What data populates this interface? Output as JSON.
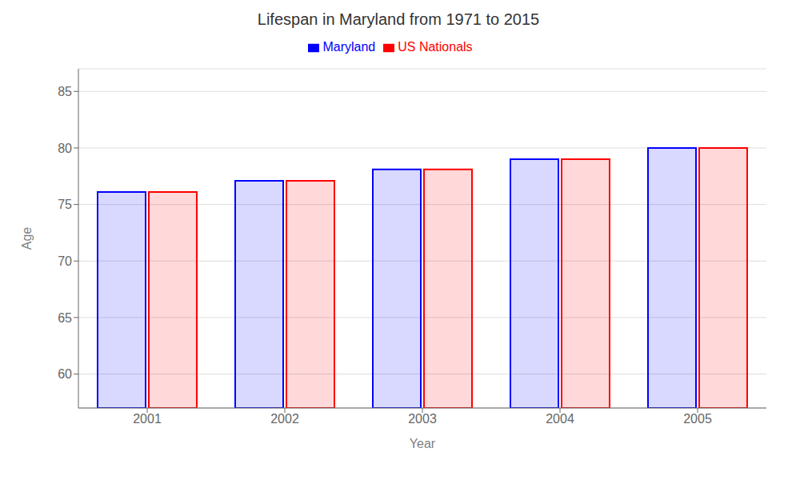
{
  "chart_data": {
    "type": "bar",
    "title": "Lifespan in Maryland from 1971 to 2015",
    "x_label": "Year",
    "y_label": "Age",
    "categories": [
      "2001",
      "2002",
      "2003",
      "2004",
      "2005"
    ],
    "series": [
      {
        "name": "Maryland",
        "color": "#0000ff",
        "values": [
          76.1,
          77.1,
          78.1,
          79.0,
          80.0
        ]
      },
      {
        "name": "US Nationals",
        "color": "#ff0000",
        "values": [
          76.1,
          77.1,
          78.1,
          79.0,
          80.0
        ]
      }
    ],
    "ylim": [
      57,
      87
    ],
    "yticks": [
      60,
      65,
      70,
      75,
      80,
      85
    ],
    "grid": true,
    "legend": "top"
  }
}
